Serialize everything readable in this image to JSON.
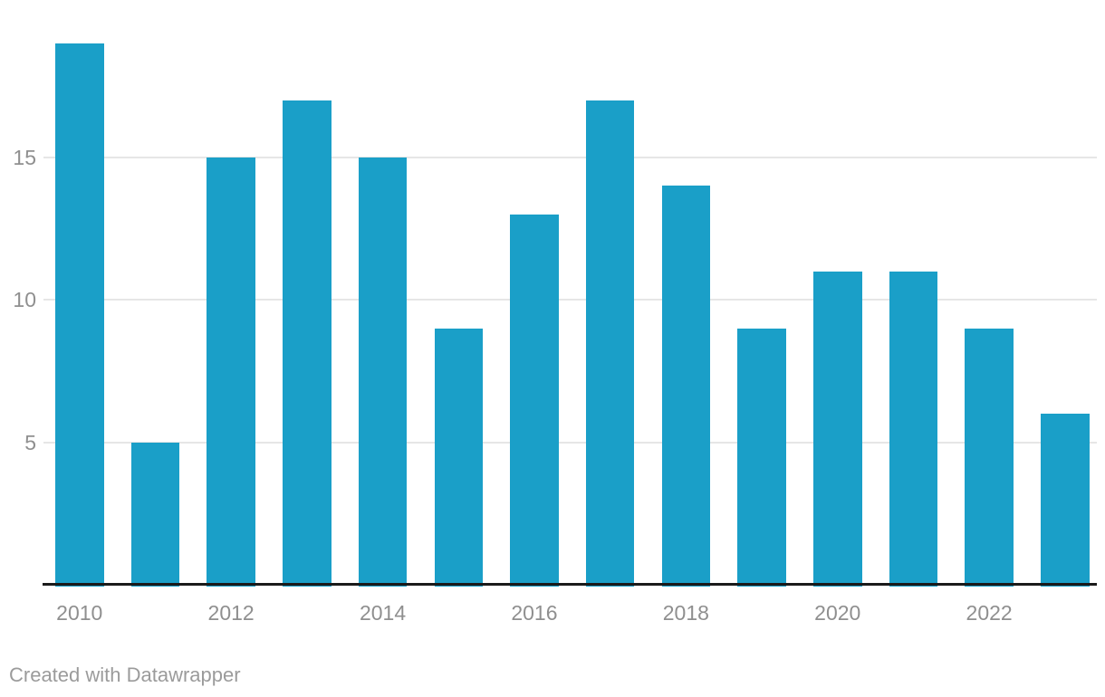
{
  "chart_data": {
    "type": "bar",
    "categories": [
      "2010",
      "2011",
      "2012",
      "2013",
      "2014",
      "2015",
      "2016",
      "2017",
      "2018",
      "2019",
      "2020",
      "2021",
      "2022",
      "2023"
    ],
    "values": [
      19,
      5,
      15,
      17,
      15,
      9,
      13,
      17,
      14,
      9,
      11,
      11,
      9,
      6
    ],
    "title": "",
    "xlabel": "",
    "ylabel": "",
    "ylim": [
      0,
      19.5
    ],
    "yticks": [
      5,
      10,
      15
    ],
    "xtick_labels": [
      "2010",
      "2012",
      "2014",
      "2016",
      "2018",
      "2020",
      "2022"
    ],
    "grid": true,
    "legend": "none"
  },
  "colors": {
    "bar": "#1a9fc8",
    "axis_line": "#1a1a1a",
    "gridline": "#e6e6e6",
    "axis_label_text": "#8f8f8f",
    "footer_text": "#9b9b9b",
    "background": "#ffffff"
  },
  "footer": {
    "attribution": "Created with Datawrapper"
  }
}
